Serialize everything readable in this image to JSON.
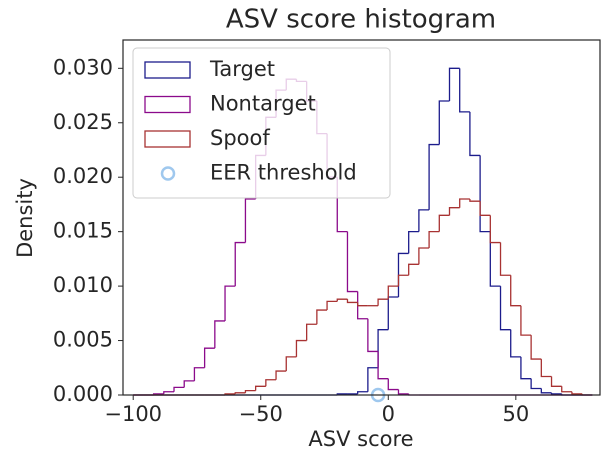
{
  "chart_data": {
    "type": "histogram",
    "title": "ASV score histogram",
    "xlabel": "ASV score",
    "ylabel": "Density",
    "bins": [
      -100,
      -96,
      -92,
      -88,
      -84,
      -80,
      -76,
      -72,
      -68,
      -64,
      -60,
      -56,
      -52,
      -48,
      -44,
      -40,
      -36,
      -32,
      -28,
      -24,
      -20,
      -16,
      -12,
      -8,
      -4,
      0,
      4,
      8,
      12,
      16,
      20,
      24,
      28,
      32,
      36,
      40,
      44,
      48,
      52,
      56,
      60,
      64,
      68,
      72,
      76,
      80
    ],
    "series": [
      {
        "name": "Target",
        "color": "#1c1c8c",
        "values": [
          0,
          0,
          0,
          0,
          0,
          0,
          0,
          0,
          0,
          0,
          0,
          0,
          0,
          0,
          0,
          0,
          0,
          0,
          0,
          0,
          0.0001,
          0.0001,
          0.0003,
          0.0025,
          0.006,
          0.009,
          0.013,
          0.015,
          0.017,
          0.023,
          0.027,
          0.03,
          0.026,
          0.022,
          0.015,
          0.01,
          0.006,
          0.0035,
          0.0015,
          0.0006,
          0.0002,
          0.0001,
          0,
          0,
          0
        ]
      },
      {
        "name": "Nontarget",
        "color": "#8b0a8b",
        "values": [
          0,
          0,
          0.0001,
          0.0003,
          0.0007,
          0.0013,
          0.0025,
          0.0043,
          0.0068,
          0.01,
          0.014,
          0.018,
          0.022,
          0.0255,
          0.028,
          0.029,
          0.0288,
          0.027,
          0.024,
          0.02,
          0.015,
          0.0095,
          0.007,
          0.004,
          0.0015,
          0.0005,
          0.0001,
          0,
          0,
          0,
          0,
          0,
          0,
          0,
          0,
          0,
          0,
          0,
          0,
          0,
          0,
          0,
          0,
          0,
          0
        ]
      },
      {
        "name": "Spoof",
        "color": "#a83232",
        "values": [
          0,
          0,
          0,
          0,
          0,
          0,
          0,
          0,
          0,
          0.0001,
          0.0002,
          0.0004,
          0.0008,
          0.0014,
          0.0022,
          0.0035,
          0.005,
          0.0065,
          0.0078,
          0.0086,
          0.0088,
          0.0085,
          0.0082,
          0.0082,
          0.0088,
          0.01,
          0.011,
          0.012,
          0.0135,
          0.015,
          0.0165,
          0.0172,
          0.018,
          0.0178,
          0.0165,
          0.014,
          0.011,
          0.0082,
          0.0055,
          0.0033,
          0.0017,
          0.0008,
          0.0003,
          0.0001,
          0
        ]
      }
    ],
    "threshold": {
      "name": "EER threshold",
      "color": "#9fc8ee",
      "x": [
        -4
      ],
      "values": [
        0
      ]
    },
    "xlim": [
      -104,
      83
    ],
    "ylim": [
      0,
      0.0326
    ],
    "xticks": [
      {
        "value": -100,
        "label": "−100"
      },
      {
        "value": -50,
        "label": "−50"
      },
      0,
      50
    ],
    "yticks": [
      {
        "value": 0,
        "label": "0.000"
      },
      {
        "value": 0.005,
        "label": "0.005"
      },
      {
        "value": 0.01,
        "label": "0.010"
      },
      {
        "value": 0.015,
        "label": "0.015"
      },
      {
        "value": 0.02,
        "label": "0.020"
      },
      {
        "value": 0.025,
        "label": "0.025"
      },
      {
        "value": 0.03,
        "label": "0.030"
      }
    ],
    "legend": "upper left",
    "grid": false
  }
}
